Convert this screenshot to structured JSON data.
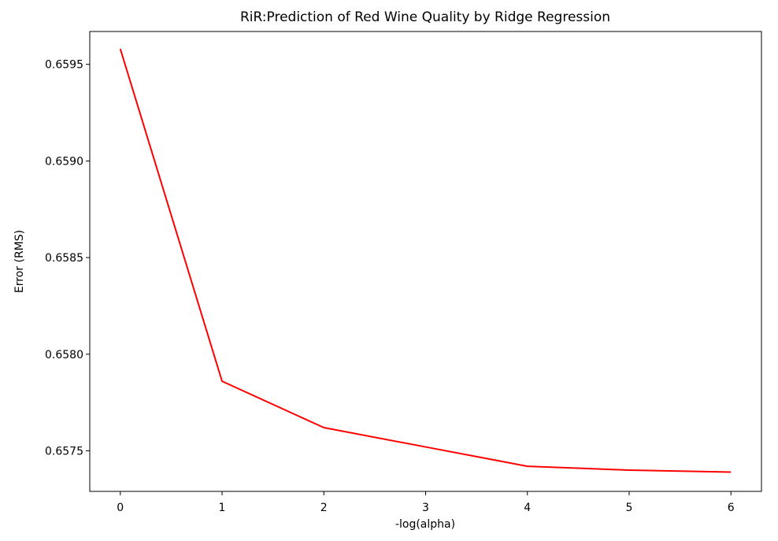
{
  "chart_data": {
    "type": "line",
    "title": "RiR:Prediction of Red Wine Quality by Ridge Regression",
    "xlabel": "-log(alpha)",
    "ylabel": "Error (RMS)",
    "x": [
      0,
      1,
      2,
      3,
      4,
      5,
      6
    ],
    "series": [
      {
        "values": [
          0.65958,
          0.65786,
          0.65762,
          0.65752,
          0.65742,
          0.6574,
          0.65739
        ],
        "color": "#ff0000"
      }
    ],
    "xlim": [
      -0.3,
      6.3
    ],
    "ylim": [
      0.65729,
      0.65967
    ],
    "xticks": [
      0,
      1,
      2,
      3,
      4,
      5,
      6
    ],
    "xtick_labels": [
      "0",
      "1",
      "2",
      "3",
      "4",
      "5",
      "6"
    ],
    "yticks": [
      0.6575,
      0.658,
      0.6585,
      0.659,
      0.6595
    ],
    "ytick_labels": [
      "0.6575",
      "0.6580",
      "0.6585",
      "0.6590",
      "0.6595"
    ],
    "grid": false,
    "legend": "none"
  }
}
